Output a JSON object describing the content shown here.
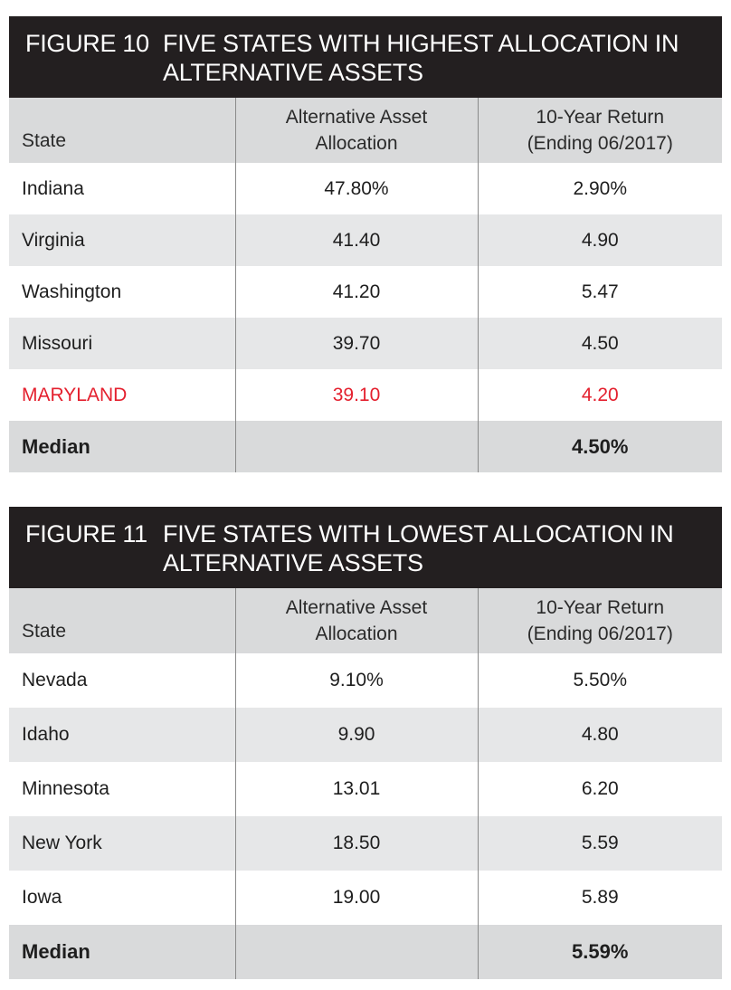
{
  "figures": [
    {
      "number": "FIGURE 10",
      "title": "FIVE STATES WITH HIGHEST ALLOCATION IN ALTERNATIVE ASSETS",
      "columns": [
        "State",
        "Alternative Asset Allocation",
        "10-Year Return (Ending 06/2017)"
      ],
      "rows": [
        {
          "state": "Indiana",
          "allocation": "47.80%",
          "return": "2.90%"
        },
        {
          "state": "Virginia",
          "allocation": "41.40",
          "return": "4.90"
        },
        {
          "state": "Washington",
          "allocation": "41.20",
          "return": "5.47"
        },
        {
          "state": "Missouri",
          "allocation": "39.70",
          "return": "4.50"
        },
        {
          "state": "MARYLAND",
          "allocation": "39.10",
          "return": "4.20"
        }
      ],
      "median": {
        "label": "Median",
        "allocation": "",
        "return": "4.50%"
      }
    },
    {
      "number": "FIGURE 11",
      "title": "FIVE STATES WITH LOWEST ALLOCATION IN ALTERNATIVE ASSETS",
      "columns": [
        "State",
        "Alternative Asset Allocation",
        "10-Year Return (Ending 06/2017)"
      ],
      "rows": [
        {
          "state": "Nevada",
          "allocation": "9.10%",
          "return": "5.50%"
        },
        {
          "state": "Idaho",
          "allocation": "9.90",
          "return": "4.80"
        },
        {
          "state": "Minnesota",
          "allocation": "13.01",
          "return": "6.20"
        },
        {
          "state": "New York",
          "allocation": "18.50",
          "return": "5.59"
        },
        {
          "state": "Iowa",
          "allocation": "19.00",
          "return": "5.89"
        }
      ],
      "median": {
        "label": "Median",
        "allocation": "",
        "return": "5.59%"
      }
    }
  ],
  "colors": {
    "header_bg": "#231f20",
    "row_shade": "#e6e7e8",
    "highlight_text": "#e4202e"
  }
}
